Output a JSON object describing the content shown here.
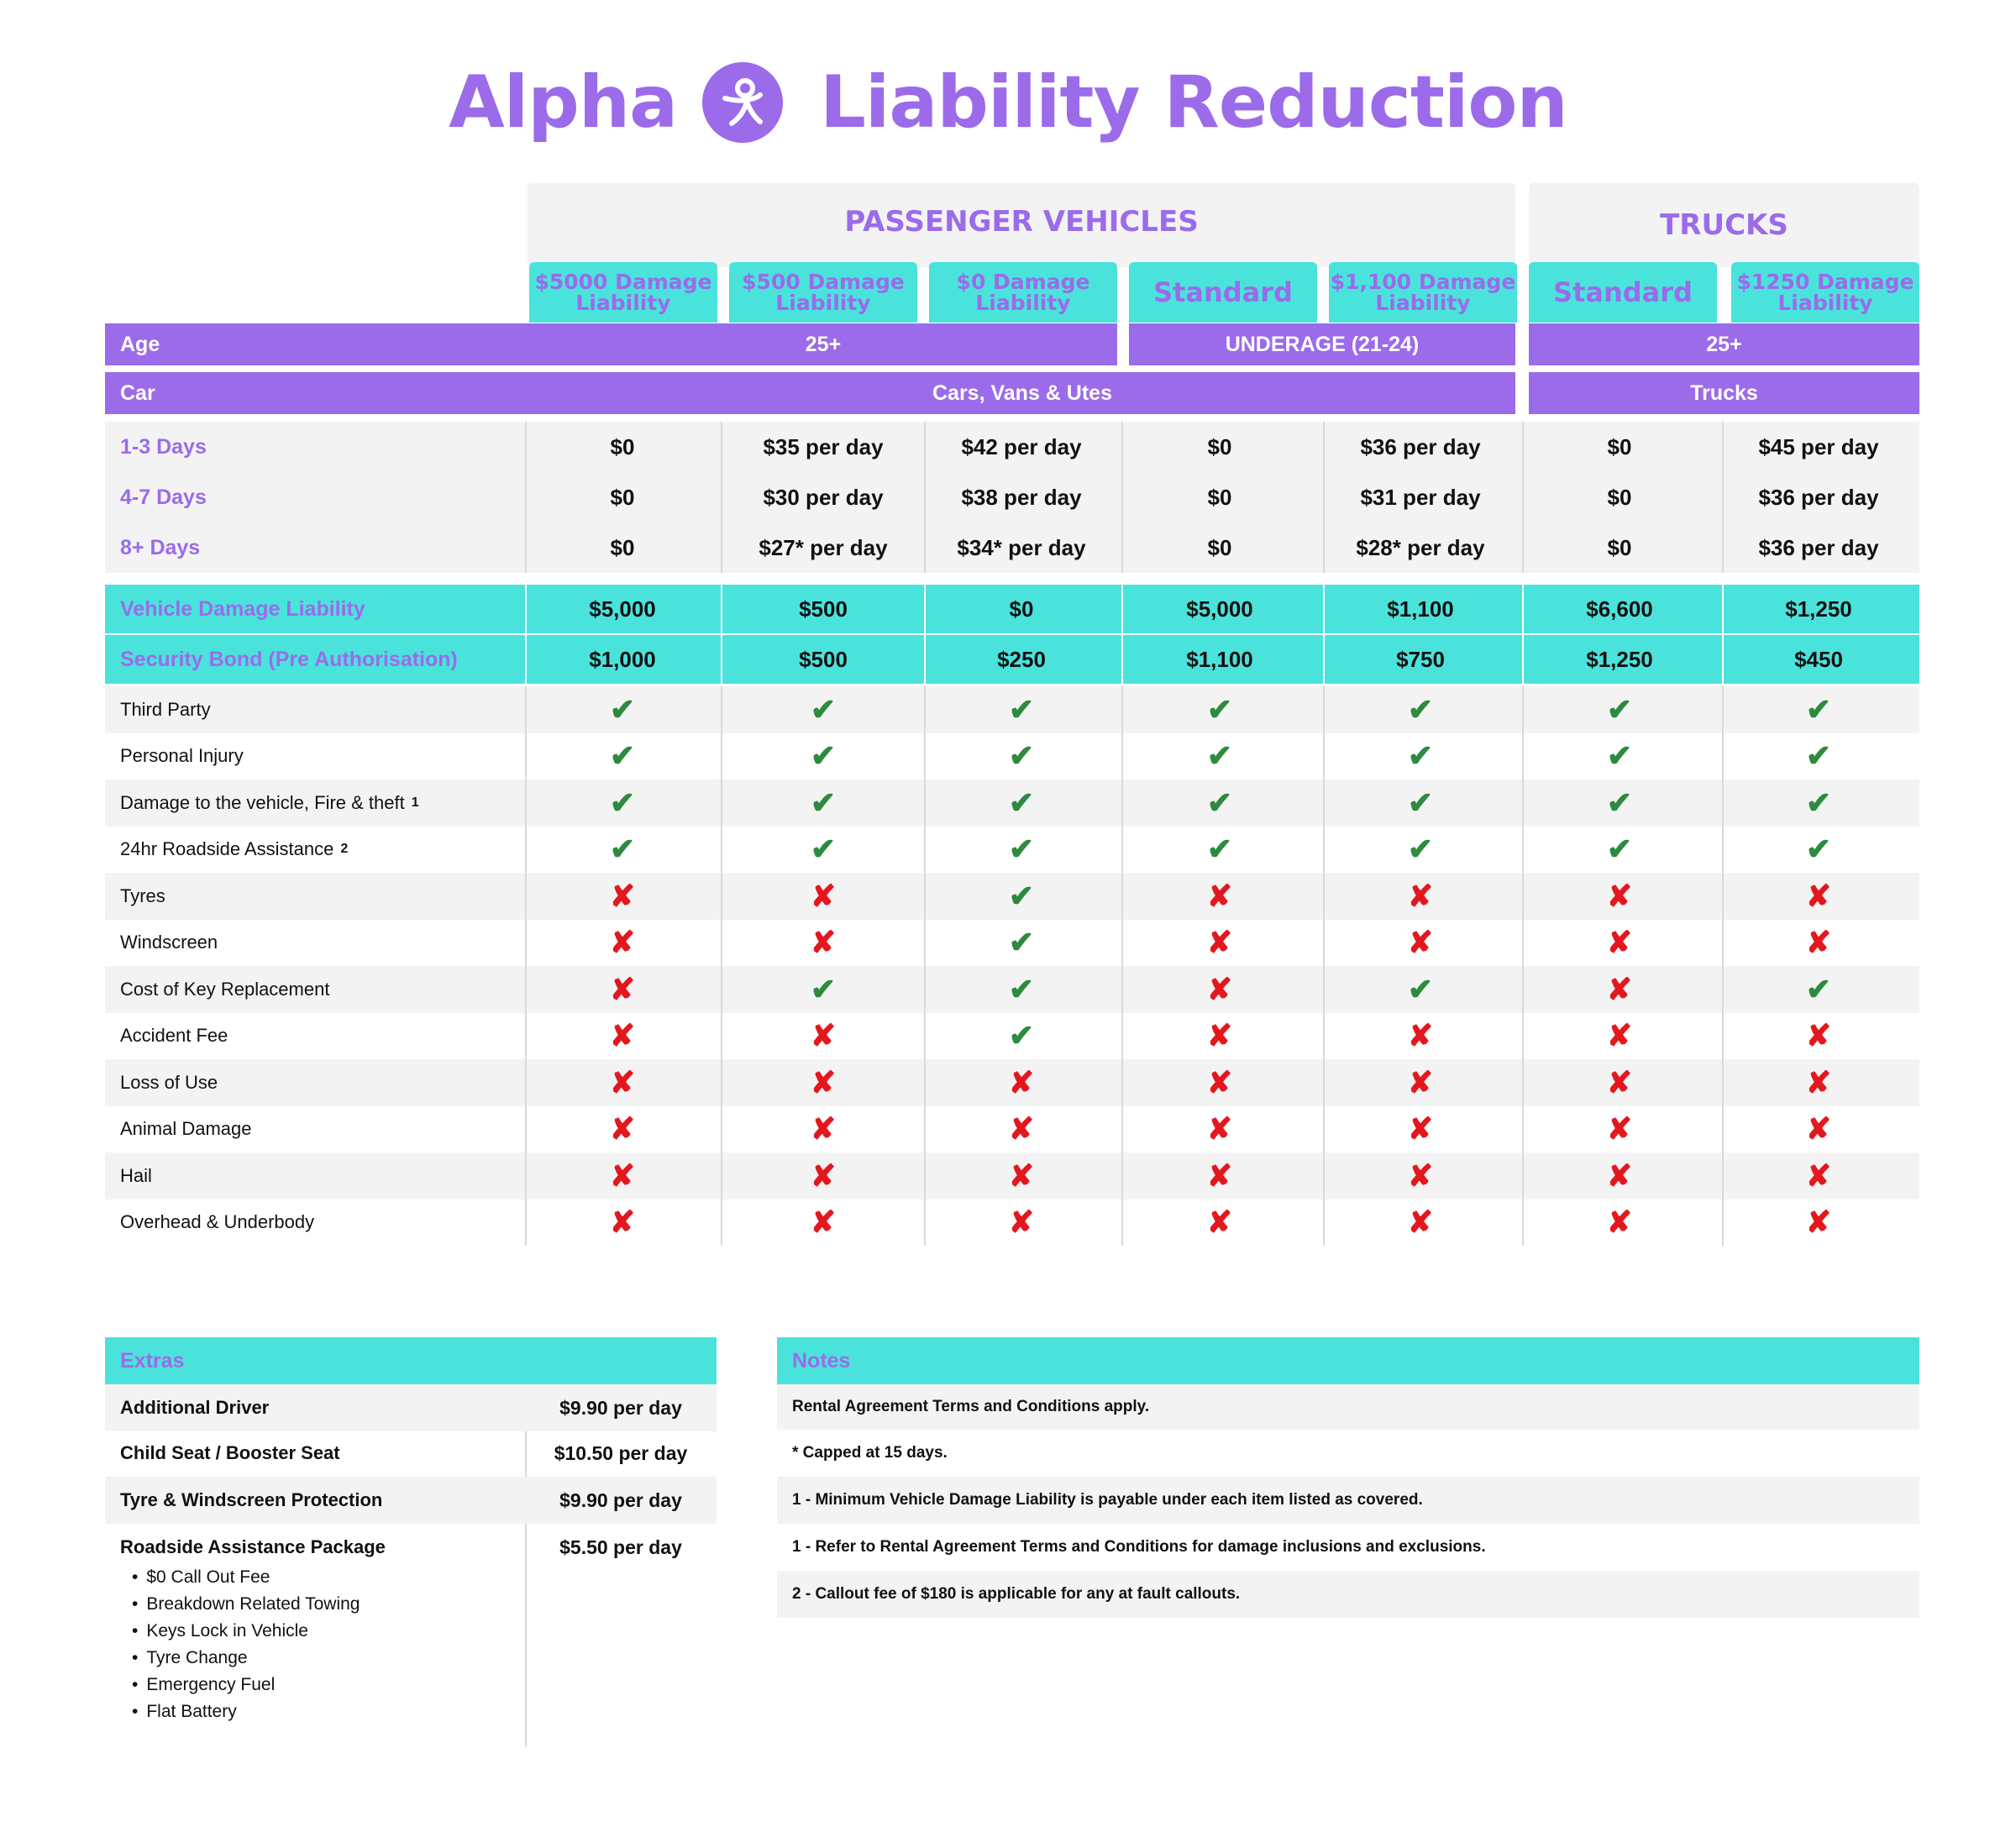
{
  "header": {
    "brand": "Alpha",
    "title": "Liability Reduction"
  },
  "groups": {
    "passenger": "PASSENGER VEHICLES",
    "trucks": "TRUCKS"
  },
  "tiers": [
    {
      "line1": "$5000 Damage",
      "line2": "Liability"
    },
    {
      "line1": "$500 Damage",
      "line2": "Liability"
    },
    {
      "line1": "$0 Damage",
      "line2": "Liability"
    },
    {
      "line1": "Standard",
      "line2": ""
    },
    {
      "line1": "$1,100 Damage",
      "line2": "Liability"
    },
    {
      "line1": "Standard",
      "line2": ""
    },
    {
      "line1": "$1250 Damage",
      "line2": "Liability"
    }
  ],
  "age": {
    "label": "Age",
    "adult": "25+",
    "underage": "UNDERAGE (21-24)",
    "trucks": "25+"
  },
  "car": {
    "label": "Car",
    "passenger": "Cars, Vans & Utes",
    "trucks": "Trucks"
  },
  "pricing": [
    {
      "label": "1-3 Days",
      "values": [
        "$0",
        "$35 per day",
        "$42 per day",
        "$0",
        "$36 per day",
        "$0",
        "$45 per day"
      ]
    },
    {
      "label": "4-7 Days",
      "values": [
        "$0",
        "$30 per day",
        "$38 per day",
        "$0",
        "$31 per day",
        "$0",
        "$36 per day"
      ]
    },
    {
      "label": "8+ Days",
      "values": [
        "$0",
        "$27* per day",
        "$34* per day",
        "$0",
        "$28* per day",
        "$0",
        "$36 per day"
      ]
    }
  ],
  "liability": [
    {
      "label": "Vehicle Damage Liability",
      "values": [
        "$5,000",
        "$500",
        "$0",
        "$5,000",
        "$1,100",
        "$6,600",
        "$1,250"
      ]
    },
    {
      "label": "Security Bond (Pre Authorisation)",
      "values": [
        "$1,000",
        "$500",
        "$250",
        "$1,100",
        "$750",
        "$1,250",
        "$450"
      ]
    }
  ],
  "features": [
    {
      "label": "Third Party",
      "sup": "",
      "values": [
        1,
        1,
        1,
        1,
        1,
        1,
        1
      ]
    },
    {
      "label": "Personal Injury",
      "sup": "",
      "values": [
        1,
        1,
        1,
        1,
        1,
        1,
        1
      ]
    },
    {
      "label": "Damage to the vehicle, Fire & theft",
      "sup": "1",
      "values": [
        1,
        1,
        1,
        1,
        1,
        1,
        1
      ]
    },
    {
      "label": "24hr Roadside Assistance",
      "sup": "2",
      "values": [
        1,
        1,
        1,
        1,
        1,
        1,
        1
      ]
    },
    {
      "label": "Tyres",
      "sup": "",
      "values": [
        0,
        0,
        1,
        0,
        0,
        0,
        0
      ]
    },
    {
      "label": "Windscreen",
      "sup": "",
      "values": [
        0,
        0,
        1,
        0,
        0,
        0,
        0
      ]
    },
    {
      "label": "Cost of Key Replacement",
      "sup": "",
      "values": [
        0,
        1,
        1,
        0,
        1,
        0,
        1
      ]
    },
    {
      "label": "Accident Fee",
      "sup": "",
      "values": [
        0,
        0,
        1,
        0,
        0,
        0,
        0
      ]
    },
    {
      "label": "Loss of Use",
      "sup": "",
      "values": [
        0,
        0,
        0,
        0,
        0,
        0,
        0
      ]
    },
    {
      "label": "Animal Damage",
      "sup": "",
      "values": [
        0,
        0,
        0,
        0,
        0,
        0,
        0
      ]
    },
    {
      "label": "Hail",
      "sup": "",
      "values": [
        0,
        0,
        0,
        0,
        0,
        0,
        0
      ]
    },
    {
      "label": "Overhead & Underbody",
      "sup": "",
      "values": [
        0,
        0,
        0,
        0,
        0,
        0,
        0
      ]
    }
  ],
  "symbols": {
    "check": "✔",
    "cross": "✘",
    "check_color": "#2d8a3e",
    "cross_color": "#e3171d"
  },
  "colors": {
    "purple": "#9b6bea",
    "teal": "#4ae3dc",
    "grey": "#f3f3f3"
  },
  "extras": {
    "title": "Extras",
    "items": [
      {
        "name": "Additional Driver",
        "price": "$9.90 per day"
      },
      {
        "name": "Child Seat / Booster Seat",
        "price": "$10.50 per day"
      },
      {
        "name": "Tyre & Windscreen Protection",
        "price": "$9.90 per day"
      },
      {
        "name": "Roadside Assistance Package",
        "price": "$5.50 per day"
      }
    ],
    "roadside_items": [
      "$0 Call Out Fee",
      "Breakdown Related Towing",
      "Keys Lock in Vehicle",
      "Tyre Change",
      "Emergency Fuel",
      "Flat Battery"
    ]
  },
  "notes": {
    "title": "Notes",
    "items": [
      "Rental Agreement Terms and Conditions apply.",
      "* Capped at 15 days.",
      "1 - Minimum Vehicle Damage Liability is payable under each item listed as covered.",
      "1 - Refer to Rental Agreement Terms and Conditions for damage inclusions and exclusions.",
      "2 - Callout fee of $180 is applicable for any at fault callouts."
    ]
  }
}
